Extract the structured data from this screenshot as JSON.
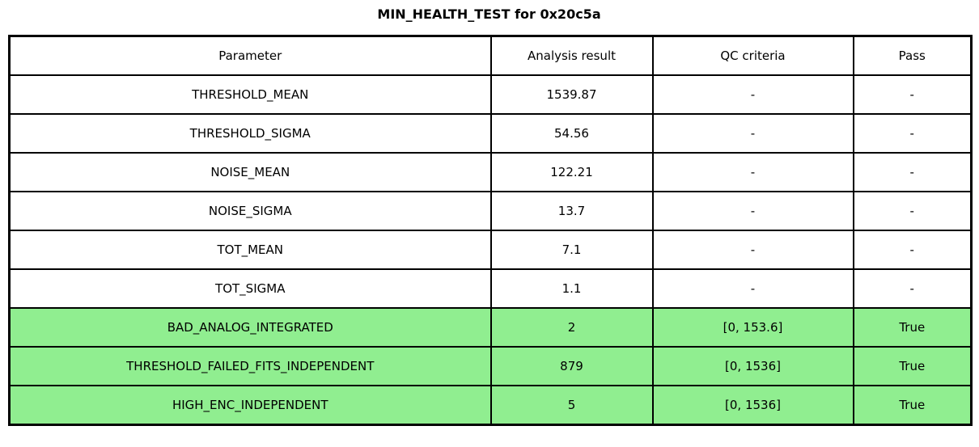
{
  "title": "MIN_HEALTH_TEST for 0x20c5a",
  "colors": {
    "pass_green": "#90EE90",
    "border": "#000000",
    "background": "#FFFFFF"
  },
  "table": {
    "headers": [
      "Parameter",
      "Analysis result",
      "QC criteria",
      "Pass"
    ],
    "rows": [
      {
        "parameter": "THRESHOLD_MEAN",
        "result": "1539.87",
        "qc": "-",
        "pass": "-",
        "highlight": false
      },
      {
        "parameter": "THRESHOLD_SIGMA",
        "result": "54.56",
        "qc": "-",
        "pass": "-",
        "highlight": false
      },
      {
        "parameter": "NOISE_MEAN",
        "result": "122.21",
        "qc": "-",
        "pass": "-",
        "highlight": false
      },
      {
        "parameter": "NOISE_SIGMA",
        "result": "13.7",
        "qc": "-",
        "pass": "-",
        "highlight": false
      },
      {
        "parameter": "TOT_MEAN",
        "result": "7.1",
        "qc": "-",
        "pass": "-",
        "highlight": false
      },
      {
        "parameter": "TOT_SIGMA",
        "result": "1.1",
        "qc": "-",
        "pass": "-",
        "highlight": false
      },
      {
        "parameter": "BAD_ANALOG_INTEGRATED",
        "result": "2",
        "qc": "[0, 153.6]",
        "pass": "True",
        "highlight": true
      },
      {
        "parameter": "THRESHOLD_FAILED_FITS_INDEPENDENT",
        "result": "879",
        "qc": "[0, 1536]",
        "pass": "True",
        "highlight": true
      },
      {
        "parameter": "HIGH_ENC_INDEPENDENT",
        "result": "5",
        "qc": "[0, 1536]",
        "pass": "True",
        "highlight": true
      }
    ]
  },
  "chart_data": {
    "type": "table",
    "title": "MIN_HEALTH_TEST for 0x20c5a",
    "columns": [
      "Parameter",
      "Analysis result",
      "QC criteria",
      "Pass"
    ],
    "rows": [
      [
        "THRESHOLD_MEAN",
        "1539.87",
        "-",
        "-"
      ],
      [
        "THRESHOLD_SIGMA",
        "54.56",
        "-",
        "-"
      ],
      [
        "NOISE_MEAN",
        "122.21",
        "-",
        "-"
      ],
      [
        "NOISE_SIGMA",
        "13.7",
        "-",
        "-"
      ],
      [
        "TOT_MEAN",
        "7.1",
        "-",
        "-"
      ],
      [
        "TOT_SIGMA",
        "1.1",
        "-",
        "-"
      ],
      [
        "BAD_ANALOG_INTEGRATED",
        "2",
        "[0, 153.6]",
        "True"
      ],
      [
        "THRESHOLD_FAILED_FITS_INDEPENDENT",
        "879",
        "[0, 1536]",
        "True"
      ],
      [
        "HIGH_ENC_INDEPENDENT",
        "5",
        "[0, 1536]",
        "True"
      ]
    ],
    "highlighted_rows": [
      6,
      7,
      8
    ],
    "highlight_color": "#90EE90",
    "layout": "header row on top, all cells center-aligned, black grid borders"
  }
}
